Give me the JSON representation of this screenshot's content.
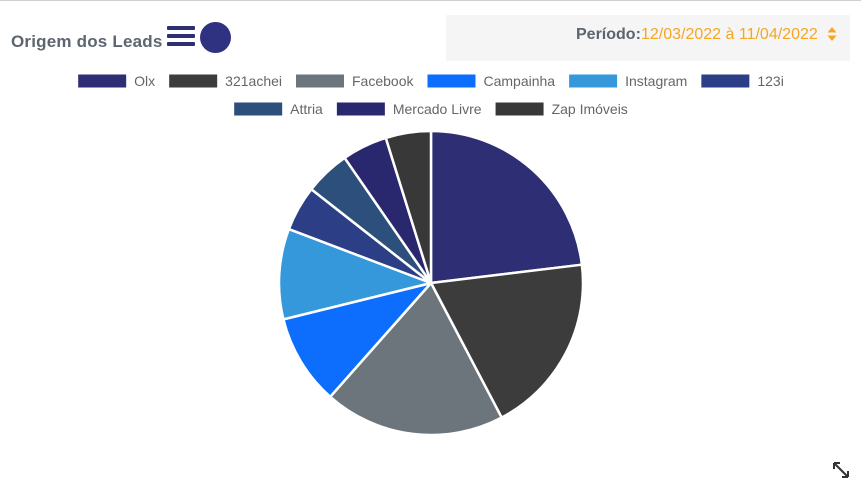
{
  "header": {
    "title": "Origem dos Leads",
    "period_label": "Período:",
    "period_value": "12/03/2022 à 11/04/2022"
  },
  "icons": {
    "menu": "hamburger-menu-icon",
    "circle": "circle-icon",
    "sort": "sort-up-down-icon",
    "expand": "expand-icon"
  },
  "chart_data": {
    "type": "pie",
    "legend_position": "top",
    "categories": [
      "Olx",
      "321achei",
      "Facebook",
      "Campainha",
      "Instagram",
      "123i",
      "Attria",
      "Mercado Livre",
      "Zap Imóveis"
    ],
    "values": [
      24,
      20,
      20,
      10,
      10,
      5,
      5,
      5,
      5
    ],
    "colors": [
      "#2e2e75",
      "#3c3c3c",
      "#6c747c",
      "#0d6efd",
      "#3498db",
      "#2c3e85",
      "#2c4f7c",
      "#29286f",
      "#383838"
    ]
  }
}
